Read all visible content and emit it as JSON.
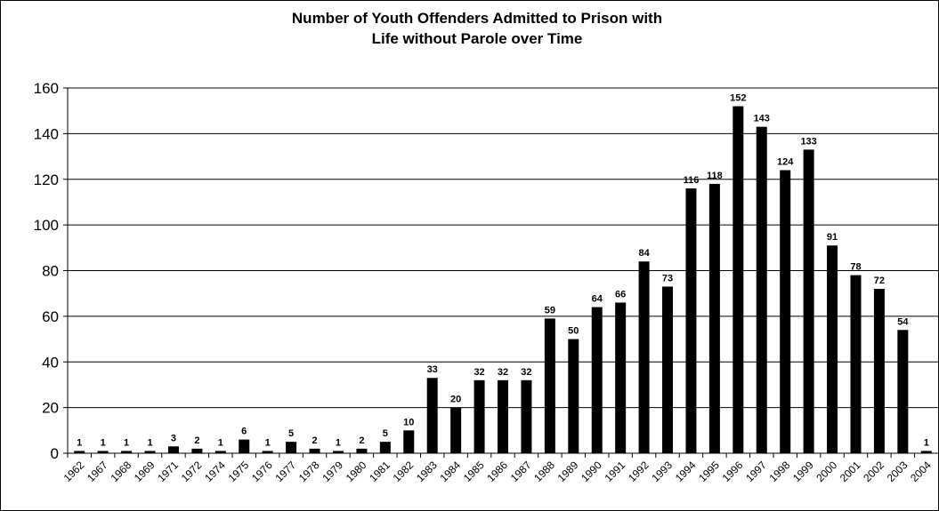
{
  "chart_data": {
    "type": "bar",
    "title_lines": [
      "Number of Youth Offenders Admitted to Prison with",
      "Life without Parole over Time"
    ],
    "xlabel": "",
    "ylabel": "",
    "ylim": [
      0,
      160
    ],
    "yticks": [
      0,
      20,
      40,
      60,
      80,
      100,
      120,
      140,
      160
    ],
    "grid": true,
    "legend": "none",
    "bar_color": "#000000",
    "categories": [
      "1962",
      "1967",
      "1968",
      "1969",
      "1971",
      "1972",
      "1974",
      "1975",
      "1976",
      "1977",
      "1978",
      "1979",
      "1980",
      "1981",
      "1982",
      "1983",
      "1984",
      "1985",
      "1986",
      "1987",
      "1988",
      "1989",
      "1990",
      "1991",
      "1992",
      "1993",
      "1994",
      "1995",
      "1996",
      "1997",
      "1998",
      "1999",
      "2000",
      "2001",
      "2002",
      "2003",
      "2004"
    ],
    "values": [
      1,
      1,
      1,
      1,
      3,
      2,
      1,
      6,
      1,
      5,
      2,
      1,
      2,
      5,
      10,
      33,
      20,
      32,
      32,
      32,
      59,
      50,
      64,
      66,
      84,
      73,
      116,
      118,
      152,
      143,
      124,
      133,
      91,
      78,
      72,
      54,
      1
    ]
  }
}
